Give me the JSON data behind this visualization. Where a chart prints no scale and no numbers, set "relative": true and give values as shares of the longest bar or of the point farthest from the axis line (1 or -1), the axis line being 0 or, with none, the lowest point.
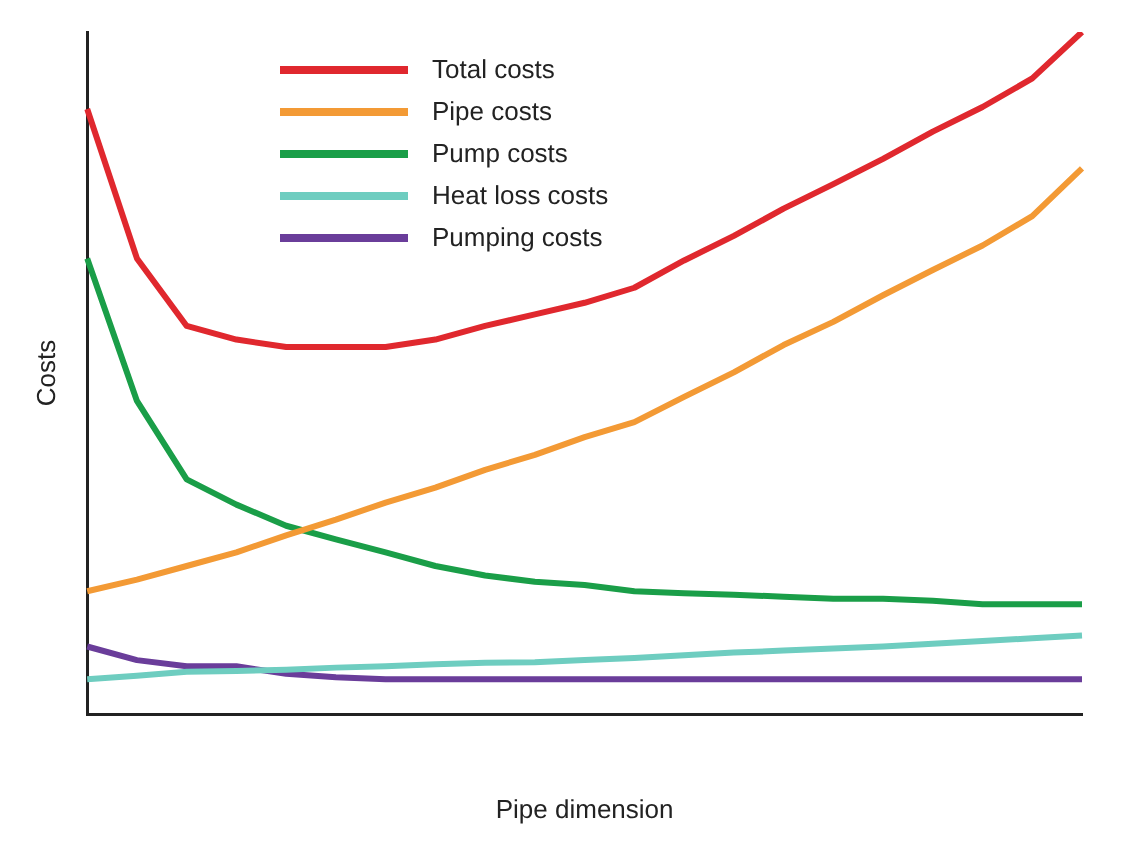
{
  "chart_data": {
    "type": "line",
    "relative": true,
    "xlabel": "Pipe dimension",
    "ylabel": "Costs",
    "grid": false,
    "legend": "top left",
    "marker": "none",
    "line_style": "solid",
    "categories": [
      null,
      null,
      null,
      null,
      null,
      null,
      null,
      null,
      null,
      null,
      null,
      null,
      null,
      null,
      null,
      null,
      null,
      null,
      null,
      null,
      null
    ],
    "series": [
      {
        "name": "Total costs",
        "color": "#e0282e",
        "values": [
          0.887,
          0.668,
          0.569,
          0.549,
          0.538,
          0.538,
          0.538,
          0.549,
          0.569,
          0.586,
          0.603,
          0.625,
          0.665,
          0.701,
          0.741,
          0.777,
          0.814,
          0.854,
          0.89,
          0.932,
          1
        ]
      },
      {
        "name": "Pipe costs",
        "color": "#f39a35",
        "values": [
          0.18,
          0.197,
          0.217,
          0.237,
          0.262,
          0.285,
          0.31,
          0.332,
          0.358,
          0.38,
          0.406,
          0.428,
          0.465,
          0.501,
          0.541,
          0.575,
          0.614,
          0.651,
          0.687,
          0.73,
          0.8
        ]
      },
      {
        "name": "Pump costs",
        "color": "#1a9e48",
        "values": [
          0.668,
          0.459,
          0.344,
          0.307,
          0.276,
          0.256,
          0.237,
          0.217,
          0.203,
          0.194,
          0.189,
          0.18,
          0.177,
          0.175,
          0.172,
          0.169,
          0.169,
          0.166,
          0.161,
          0.161,
          0.161
        ]
      },
      {
        "name": "Heat loss costs",
        "color": "#6ecdc0",
        "values": [
          0.051,
          0.056,
          0.062,
          0.063,
          0.065,
          0.068,
          0.07,
          0.073,
          0.075,
          0.076,
          0.079,
          0.082,
          0.086,
          0.09,
          0.093,
          0.096,
          0.099,
          0.103,
          0.107,
          0.111,
          0.115
        ]
      },
      {
        "name": "Pumping costs",
        "color": "#6a3d9a",
        "values": [
          0.099,
          0.079,
          0.07,
          0.07,
          0.059,
          0.054,
          0.051,
          0.051,
          0.051,
          0.051,
          0.051,
          0.051,
          0.051,
          0.051,
          0.051,
          0.051,
          0.051,
          0.051,
          0.051,
          0.051,
          0.051
        ]
      }
    ]
  }
}
